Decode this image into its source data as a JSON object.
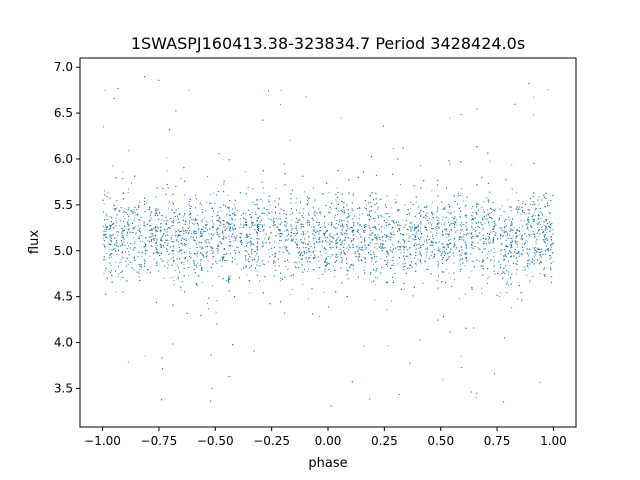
{
  "chart_data": {
    "type": "scatter",
    "title": "1SWASPJ160413.38-323834.7 Period 3428424.0s",
    "xlabel": "phase",
    "ylabel": "flux",
    "xlim": [
      -1.1,
      1.1
    ],
    "ylim": [
      3.08,
      7.1
    ],
    "x_ticks": [
      -1.0,
      -0.75,
      -0.5,
      -0.25,
      0.0,
      0.25,
      0.5,
      0.75,
      1.0
    ],
    "x_tick_labels": [
      "−1.00",
      "−0.75",
      "−0.50",
      "−0.25",
      "0.00",
      "0.25",
      "0.50",
      "0.75",
      "1.00"
    ],
    "y_ticks": [
      3.5,
      4.0,
      4.5,
      5.0,
      5.5,
      6.0,
      6.5,
      7.0
    ],
    "y_tick_labels": [
      "3.5",
      "4.0",
      "4.5",
      "5.0",
      "5.5",
      "6.0",
      "6.5",
      "7.0"
    ],
    "grid": false,
    "marker_color": "#1f77b4",
    "series": [
      {
        "phase_range": [
          -1.0,
          1.0
        ],
        "flux_median": 5.15,
        "flux_core_band": [
          4.7,
          5.65
        ],
        "flux_outlier_range": [
          3.3,
          6.9
        ],
        "approx_point_count": 9000
      }
    ]
  }
}
